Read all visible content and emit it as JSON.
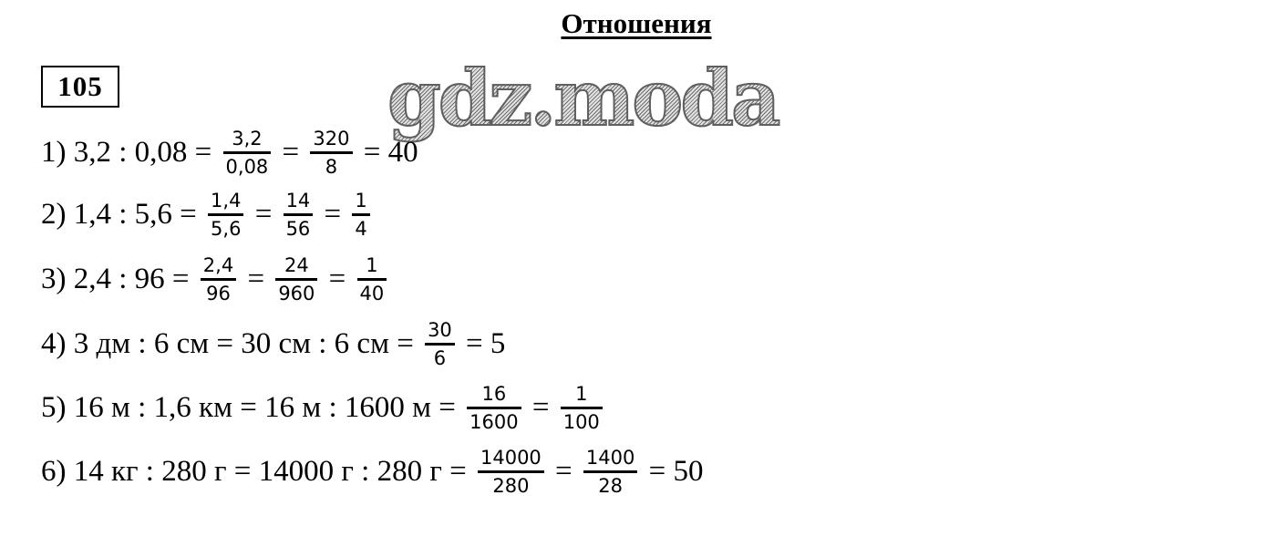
{
  "title": "Отношения",
  "problem_number": "105",
  "watermark": "gdz.moda",
  "lines": [
    [
      {
        "t": "1) 3,2 : 0,08 = "
      },
      {
        "n": "3,2",
        "d": "0,08"
      },
      {
        "t": " = "
      },
      {
        "n": "320",
        "d": "8"
      },
      {
        "t": " = 40"
      }
    ],
    [
      {
        "t": "2) 1,4 : 5,6 = "
      },
      {
        "n": "1,4",
        "d": "5,6"
      },
      {
        "t": " = "
      },
      {
        "n": "14",
        "d": "56"
      },
      {
        "t": " = "
      },
      {
        "n": "1",
        "d": "4"
      }
    ],
    [
      {
        "t": "3) 2,4 : 96 = "
      },
      {
        "n": "2,4",
        "d": "96"
      },
      {
        "t": " = "
      },
      {
        "n": "24",
        "d": "960"
      },
      {
        "t": " = "
      },
      {
        "n": "1",
        "d": "40"
      }
    ],
    [
      {
        "t": "4) 3 дм : 6 см = 30 см : 6 см = "
      },
      {
        "n": "30",
        "d": "6"
      },
      {
        "t": " = 5"
      }
    ],
    [
      {
        "t": "5) 16 м : 1,6 км = 16 м : 1600 м = "
      },
      {
        "n": "16",
        "d": "1600"
      },
      {
        "t": " = "
      },
      {
        "n": "1",
        "d": "100"
      }
    ],
    [
      {
        "t": "6) 14 кг : 280 г = 14000 г : 280 г = "
      },
      {
        "n": "14000",
        "d": "280"
      },
      {
        "t": " = "
      },
      {
        "n": "1400",
        "d": "28"
      },
      {
        "t": " = 50"
      }
    ]
  ]
}
